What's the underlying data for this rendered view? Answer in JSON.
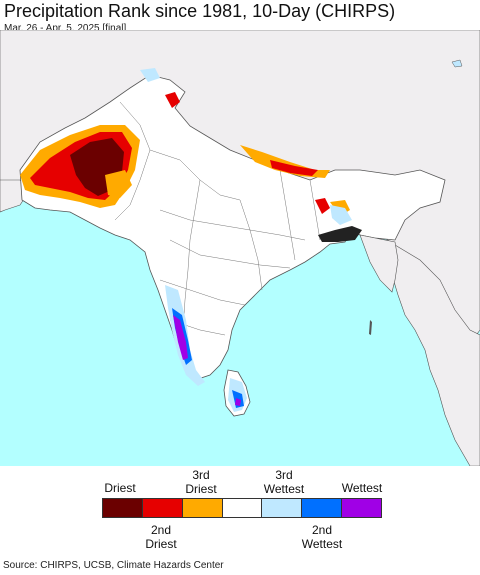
{
  "header": {
    "title": "Precipitation Rank since 1981, 10-Day (CHIRPS)",
    "subtitle": "Mar. 26 - Apr. 5, 2025 [final]"
  },
  "legend": {
    "top_labels": [
      "Driest",
      "3rd\nDriest",
      "3rd\nWettest",
      "Wettest"
    ],
    "bottom_labels": [
      "2nd\nDriest",
      "2nd\nWettest"
    ],
    "colors": [
      "#6b0000",
      "#e60000",
      "#ffaa00",
      "#ffffff",
      "#bfe8ff",
      "#0070ff",
      "#a000e6"
    ]
  },
  "footer": {
    "source": "Source: CHIRPS, UCSB, Climate Hazards Center"
  },
  "map_colors": {
    "ocean": "#b3ffff",
    "land_outside": "#f0eef0",
    "land_inside": "#ffffff",
    "borders": "#555555"
  }
}
